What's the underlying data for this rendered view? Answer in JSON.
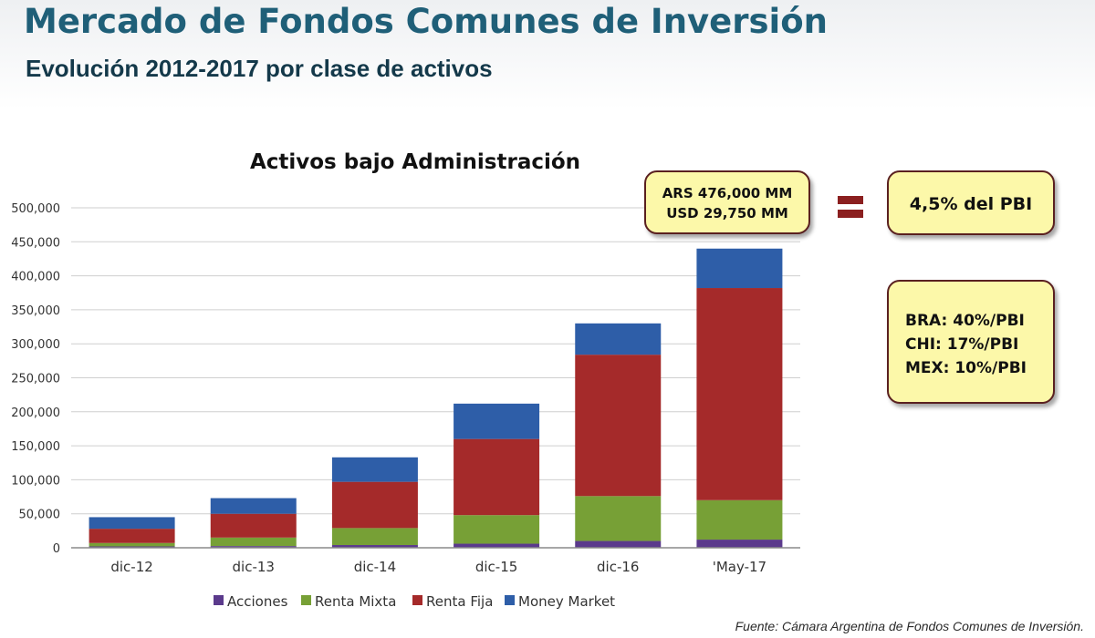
{
  "header": {
    "title": "Mercado de Fondos Comunes de Inversión",
    "subtitle": "Evolución 2012-2017 por clase de activos"
  },
  "chart_data": {
    "type": "bar",
    "stacked": true,
    "title": "Activos bajo Administración",
    "xlabel": "",
    "ylabel": "",
    "ylim": [
      0,
      500000
    ],
    "yticks": [
      "0",
      "50,000",
      "100,000",
      "150,000",
      "200,000",
      "250,000",
      "300,000",
      "350,000",
      "400,000",
      "450,000",
      "500,000"
    ],
    "grid": true,
    "legend_position": "bottom",
    "categories": [
      "dic-12",
      "dic-13",
      "dic-14",
      "dic-15",
      "dic-16",
      "'May-17"
    ],
    "series": [
      {
        "name": "Acciones",
        "color": "#5b3a8c",
        "values": [
          2000,
          2500,
          4000,
          6000,
          10000,
          12000
        ]
      },
      {
        "name": "Renta Mixta",
        "color": "#77a036",
        "values": [
          5000,
          12500,
          25000,
          42000,
          66000,
          58000
        ]
      },
      {
        "name": "Renta Fija",
        "color": "#a52a2a",
        "values": [
          21000,
          35000,
          68000,
          112000,
          208000,
          312000
        ]
      },
      {
        "name": "Money Market",
        "color": "#2e5ea8",
        "values": [
          17000,
          23000,
          36000,
          52000,
          46000,
          58000
        ]
      }
    ]
  },
  "callouts": {
    "ars_line1": "ARS 476,000 MM",
    "ars_line2": "USD 29,750 MM",
    "pbi": "4,5% del PBI",
    "bra": "BRA: 40%/PBI",
    "chi": "CHI: 17%/PBI",
    "mex": "MEX: 10%/PBI"
  },
  "source": "Fuente: Cámara Argentina de Fondos Comunes de Inversión."
}
